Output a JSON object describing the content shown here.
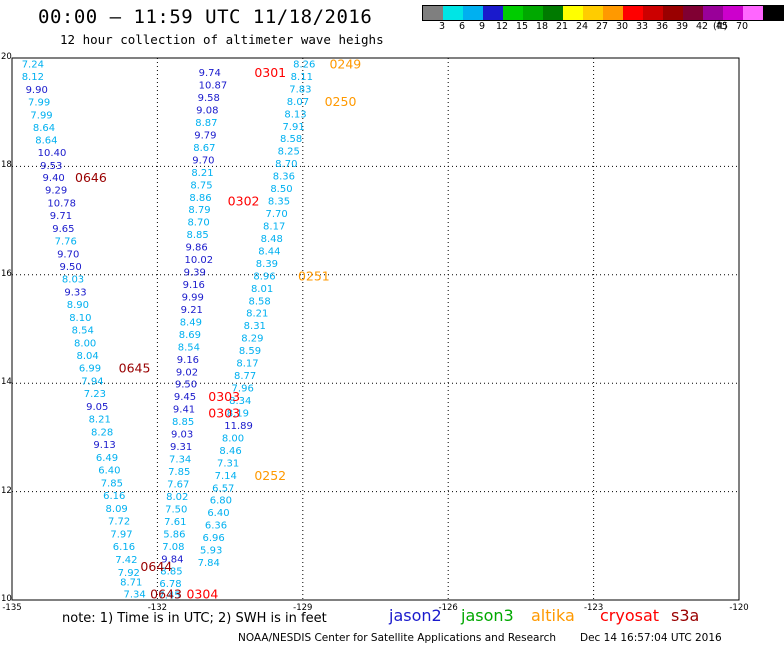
{
  "header": {
    "title": "00:00 – 11:59 UTC 11/18/2016",
    "subtitle": "12 hour collection of altimeter wave heighs"
  },
  "colorbar": {
    "colors": [
      "#7f7f7f",
      "#00e5e5",
      "#00b0f0",
      "#1a1acc",
      "#00cc00",
      "#00a800",
      "#007a00",
      "#ffff00",
      "#ffcc00",
      "#ff9900",
      "#ff0000",
      "#cc0000",
      "#990000",
      "#800033",
      "#990099",
      "#cc00cc",
      "#ff66ff",
      "#000000"
    ],
    "ticks": [
      "3",
      "6",
      "9",
      "12",
      "15",
      "18",
      "21",
      "24",
      "27",
      "30",
      "33",
      "36",
      "39",
      "42",
      "45",
      "70"
    ],
    "unit": "(ft)"
  },
  "axes": {
    "x_ticks": [
      "-135",
      "-132",
      "-129",
      "-126",
      "-123",
      "-120"
    ],
    "y_ticks": [
      "20",
      "18",
      "16",
      "14",
      "12",
      "10"
    ]
  },
  "chart_data": {
    "type": "scatter",
    "xlim": [
      -135,
      -120
    ],
    "ylim": [
      10,
      20
    ],
    "grid": true,
    "points": [
      {
        "lon": -134.8,
        "lat": 19.9,
        "v": "7.24",
        "c": "#00b0f0"
      },
      {
        "lon": -134.8,
        "lat": 19.67,
        "v": "8.12",
        "c": "#00b0f0"
      },
      {
        "lon": -134.72,
        "lat": 19.43,
        "v": "9.90",
        "c": "#1a1acc"
      },
      {
        "lon": -134.67,
        "lat": 19.2,
        "v": "7.99",
        "c": "#00b0f0"
      },
      {
        "lon": -134.62,
        "lat": 18.96,
        "v": "7.99",
        "c": "#00b0f0"
      },
      {
        "lon": -134.57,
        "lat": 18.73,
        "v": "8.64",
        "c": "#00b0f0"
      },
      {
        "lon": -134.52,
        "lat": 18.5,
        "v": "8.64",
        "c": "#00b0f0"
      },
      {
        "lon": -134.47,
        "lat": 18.27,
        "v": "10.40",
        "c": "#1a1acc"
      },
      {
        "lon": -134.42,
        "lat": 18.03,
        "v": "9.53",
        "c": "#1a1acc"
      },
      {
        "lon": -134.37,
        "lat": 17.8,
        "v": "9.40",
        "c": "#1a1acc"
      },
      {
        "lon": -134.32,
        "lat": 17.57,
        "v": "9.29",
        "c": "#1a1acc"
      },
      {
        "lon": -134.27,
        "lat": 17.33,
        "v": "10.78",
        "c": "#1a1acc"
      },
      {
        "lon": -134.22,
        "lat": 17.1,
        "v": "9.71",
        "c": "#1a1acc"
      },
      {
        "lon": -134.17,
        "lat": 16.86,
        "v": "9.65",
        "c": "#1a1acc"
      },
      {
        "lon": -134.12,
        "lat": 16.63,
        "v": "7.76",
        "c": "#00b0f0"
      },
      {
        "lon": -134.07,
        "lat": 16.39,
        "v": "9.70",
        "c": "#1a1acc"
      },
      {
        "lon": -134.02,
        "lat": 16.16,
        "v": "9.50",
        "c": "#1a1acc"
      },
      {
        "lon": -133.97,
        "lat": 15.93,
        "v": "8.03",
        "c": "#00b0f0"
      },
      {
        "lon": -133.92,
        "lat": 15.69,
        "v": "9.33",
        "c": "#1a1acc"
      },
      {
        "lon": -133.87,
        "lat": 15.46,
        "v": "8.90",
        "c": "#00b0f0"
      },
      {
        "lon": -133.82,
        "lat": 15.22,
        "v": "8.10",
        "c": "#00b0f0"
      },
      {
        "lon": -133.77,
        "lat": 14.99,
        "v": "8.54",
        "c": "#00b0f0"
      },
      {
        "lon": -133.72,
        "lat": 14.75,
        "v": "8.00",
        "c": "#00b0f0"
      },
      {
        "lon": -133.67,
        "lat": 14.52,
        "v": "8.04",
        "c": "#00b0f0"
      },
      {
        "lon": -133.62,
        "lat": 14.29,
        "v": "6.99",
        "c": "#00b0f0"
      },
      {
        "lon": -133.57,
        "lat": 14.05,
        "v": "7.94",
        "c": "#00b0f0"
      },
      {
        "lon": -133.52,
        "lat": 13.82,
        "v": "7.23",
        "c": "#00b0f0"
      },
      {
        "lon": -133.47,
        "lat": 13.58,
        "v": "9.05",
        "c": "#1a1acc"
      },
      {
        "lon": -133.42,
        "lat": 13.35,
        "v": "8.21",
        "c": "#00b0f0"
      },
      {
        "lon": -133.37,
        "lat": 13.11,
        "v": "8.28",
        "c": "#00b0f0"
      },
      {
        "lon": -133.32,
        "lat": 12.88,
        "v": "9.13",
        "c": "#1a1acc"
      },
      {
        "lon": -133.27,
        "lat": 12.64,
        "v": "6.49",
        "c": "#00b0f0"
      },
      {
        "lon": -133.22,
        "lat": 12.41,
        "v": "6.40",
        "c": "#00b0f0"
      },
      {
        "lon": -133.17,
        "lat": 12.17,
        "v": "7.85",
        "c": "#00b0f0"
      },
      {
        "lon": -133.12,
        "lat": 11.94,
        "v": "6.16",
        "c": "#00b0f0"
      },
      {
        "lon": -133.07,
        "lat": 11.7,
        "v": "8.09",
        "c": "#00b0f0"
      },
      {
        "lon": -133.02,
        "lat": 11.47,
        "v": "7.72",
        "c": "#00b0f0"
      },
      {
        "lon": -132.97,
        "lat": 11.23,
        "v": "7.97",
        "c": "#00b0f0"
      },
      {
        "lon": -132.92,
        "lat": 11.0,
        "v": "6.16",
        "c": "#00b0f0"
      },
      {
        "lon": -132.87,
        "lat": 10.76,
        "v": "7.42",
        "c": "#00b0f0"
      },
      {
        "lon": -132.82,
        "lat": 10.52,
        "v": "7.92",
        "c": "#00b0f0"
      },
      {
        "lon": -132.77,
        "lat": 10.34,
        "v": "8.71",
        "c": "#00b0f0"
      },
      {
        "lon": -132.7,
        "lat": 10.12,
        "v": "7.34",
        "c": "#00b0f0"
      },
      {
        "lon": -131.15,
        "lat": 19.74,
        "v": "9.74",
        "c": "#1a1acc"
      },
      {
        "lon": -131.15,
        "lat": 19.51,
        "v": "10.87",
        "c": "#1a1acc"
      },
      {
        "lon": -131.17,
        "lat": 19.28,
        "v": "9.58",
        "c": "#1a1acc"
      },
      {
        "lon": -131.2,
        "lat": 19.05,
        "v": "9.08",
        "c": "#1a1acc"
      },
      {
        "lon": -131.22,
        "lat": 18.82,
        "v": "8.87",
        "c": "#00b0f0"
      },
      {
        "lon": -131.24,
        "lat": 18.59,
        "v": "9.79",
        "c": "#1a1acc"
      },
      {
        "lon": -131.26,
        "lat": 18.36,
        "v": "8.67",
        "c": "#00b0f0"
      },
      {
        "lon": -131.28,
        "lat": 18.13,
        "v": "9.70",
        "c": "#1a1acc"
      },
      {
        "lon": -131.3,
        "lat": 17.9,
        "v": "8.21",
        "c": "#00b0f0"
      },
      {
        "lon": -131.32,
        "lat": 17.67,
        "v": "8.75",
        "c": "#00b0f0"
      },
      {
        "lon": -131.34,
        "lat": 17.44,
        "v": "8.86",
        "c": "#00b0f0"
      },
      {
        "lon": -131.36,
        "lat": 17.21,
        "v": "8.79",
        "c": "#00b0f0"
      },
      {
        "lon": -131.38,
        "lat": 16.98,
        "v": "8.70",
        "c": "#00b0f0"
      },
      {
        "lon": -131.4,
        "lat": 16.75,
        "v": "8.85",
        "c": "#00b0f0"
      },
      {
        "lon": -131.42,
        "lat": 16.52,
        "v": "9.86",
        "c": "#1a1acc"
      },
      {
        "lon": -131.44,
        "lat": 16.29,
        "v": "10.02",
        "c": "#1a1acc"
      },
      {
        "lon": -131.46,
        "lat": 16.06,
        "v": "9.39",
        "c": "#1a1acc"
      },
      {
        "lon": -131.48,
        "lat": 15.83,
        "v": "9.16",
        "c": "#1a1acc"
      },
      {
        "lon": -131.5,
        "lat": 15.6,
        "v": "9.99",
        "c": "#1a1acc"
      },
      {
        "lon": -131.52,
        "lat": 15.37,
        "v": "9.21",
        "c": "#1a1acc"
      },
      {
        "lon": -131.54,
        "lat": 15.14,
        "v": "8.49",
        "c": "#00b0f0"
      },
      {
        "lon": -131.56,
        "lat": 14.91,
        "v": "8.69",
        "c": "#00b0f0"
      },
      {
        "lon": -131.58,
        "lat": 14.68,
        "v": "8.54",
        "c": "#00b0f0"
      },
      {
        "lon": -131.6,
        "lat": 14.45,
        "v": "9.16",
        "c": "#1a1acc"
      },
      {
        "lon": -131.62,
        "lat": 14.22,
        "v": "9.02",
        "c": "#1a1acc"
      },
      {
        "lon": -131.64,
        "lat": 13.99,
        "v": "9.50",
        "c": "#1a1acc"
      },
      {
        "lon": -131.66,
        "lat": 13.76,
        "v": "9.45",
        "c": "#1a1acc"
      },
      {
        "lon": -131.68,
        "lat": 13.53,
        "v": "9.41",
        "c": "#1a1acc"
      },
      {
        "lon": -131.7,
        "lat": 13.3,
        "v": "8.85",
        "c": "#00b0f0"
      },
      {
        "lon": -131.72,
        "lat": 13.07,
        "v": "9.03",
        "c": "#1a1acc"
      },
      {
        "lon": -131.74,
        "lat": 12.84,
        "v": "9.31",
        "c": "#1a1acc"
      },
      {
        "lon": -131.76,
        "lat": 12.61,
        "v": "7.34",
        "c": "#00b0f0"
      },
      {
        "lon": -131.78,
        "lat": 12.38,
        "v": "7.85",
        "c": "#00b0f0"
      },
      {
        "lon": -131.8,
        "lat": 12.15,
        "v": "7.67",
        "c": "#00b0f0"
      },
      {
        "lon": -131.82,
        "lat": 11.92,
        "v": "8.02",
        "c": "#00b0f0"
      },
      {
        "lon": -131.84,
        "lat": 11.69,
        "v": "7.50",
        "c": "#00b0f0"
      },
      {
        "lon": -131.86,
        "lat": 11.46,
        "v": "7.61",
        "c": "#00b0f0"
      },
      {
        "lon": -131.88,
        "lat": 11.23,
        "v": "5.86",
        "c": "#00b0f0"
      },
      {
        "lon": -131.9,
        "lat": 11.0,
        "v": "7.08",
        "c": "#00b0f0"
      },
      {
        "lon": -131.92,
        "lat": 10.77,
        "v": "9.84",
        "c": "#1a1acc"
      },
      {
        "lon": -131.94,
        "lat": 10.54,
        "v": "8.85",
        "c": "#00b0f0"
      },
      {
        "lon": -131.96,
        "lat": 10.31,
        "v": "6.78",
        "c": "#00b0f0"
      },
      {
        "lon": -131.98,
        "lat": 10.1,
        "v": "7.45",
        "c": "#00b0f0"
      },
      {
        "lon": -129.2,
        "lat": 19.9,
        "v": "8.26",
        "c": "#00b0f0"
      },
      {
        "lon": -129.25,
        "lat": 19.67,
        "v": "8.11",
        "c": "#00b0f0"
      },
      {
        "lon": -129.28,
        "lat": 19.44,
        "v": "7.83",
        "c": "#00b0f0"
      },
      {
        "lon": -129.33,
        "lat": 19.21,
        "v": "8.07",
        "c": "#00b0f0"
      },
      {
        "lon": -129.38,
        "lat": 18.98,
        "v": "8.13",
        "c": "#00b0f0"
      },
      {
        "lon": -129.42,
        "lat": 18.75,
        "v": "7.91",
        "c": "#00b0f0"
      },
      {
        "lon": -129.47,
        "lat": 18.52,
        "v": "8.58",
        "c": "#00b0f0"
      },
      {
        "lon": -129.52,
        "lat": 18.29,
        "v": "8.25",
        "c": "#00b0f0"
      },
      {
        "lon": -129.57,
        "lat": 18.06,
        "v": "8.70",
        "c": "#00b0f0"
      },
      {
        "lon": -129.62,
        "lat": 17.83,
        "v": "8.36",
        "c": "#00b0f0"
      },
      {
        "lon": -129.67,
        "lat": 17.6,
        "v": "8.50",
        "c": "#00b0f0"
      },
      {
        "lon": -129.72,
        "lat": 17.37,
        "v": "8.35",
        "c": "#00b0f0"
      },
      {
        "lon": -129.77,
        "lat": 17.14,
        "v": "7.70",
        "c": "#00b0f0"
      },
      {
        "lon": -129.82,
        "lat": 16.91,
        "v": "8.17",
        "c": "#00b0f0"
      },
      {
        "lon": -129.87,
        "lat": 16.68,
        "v": "8.48",
        "c": "#00b0f0"
      },
      {
        "lon": -129.92,
        "lat": 16.45,
        "v": "8.44",
        "c": "#00b0f0"
      },
      {
        "lon": -129.97,
        "lat": 16.22,
        "v": "8.39",
        "c": "#00b0f0"
      },
      {
        "lon": -130.02,
        "lat": 15.99,
        "v": "8.96",
        "c": "#00b0f0"
      },
      {
        "lon": -130.07,
        "lat": 15.76,
        "v": "8.01",
        "c": "#00b0f0"
      },
      {
        "lon": -130.12,
        "lat": 15.53,
        "v": "8.58",
        "c": "#00b0f0"
      },
      {
        "lon": -130.17,
        "lat": 15.3,
        "v": "8.21",
        "c": "#00b0f0"
      },
      {
        "lon": -130.22,
        "lat": 15.07,
        "v": "8.31",
        "c": "#00b0f0"
      },
      {
        "lon": -130.27,
        "lat": 14.84,
        "v": "8.29",
        "c": "#00b0f0"
      },
      {
        "lon": -130.32,
        "lat": 14.61,
        "v": "8.59",
        "c": "#00b0f0"
      },
      {
        "lon": -130.37,
        "lat": 14.38,
        "v": "8.17",
        "c": "#00b0f0"
      },
      {
        "lon": -130.42,
        "lat": 14.15,
        "v": "8.77",
        "c": "#00b0f0"
      },
      {
        "lon": -130.47,
        "lat": 13.92,
        "v": "7.96",
        "c": "#00b0f0"
      },
      {
        "lon": -130.52,
        "lat": 13.69,
        "v": "8.34",
        "c": "#00b0f0"
      },
      {
        "lon": -130.57,
        "lat": 13.46,
        "v": "8.19",
        "c": "#00b0f0"
      },
      {
        "lon": -130.62,
        "lat": 13.23,
        "v": "11.89",
        "c": "#1a1acc"
      },
      {
        "lon": -130.67,
        "lat": 13.0,
        "v": "8.00",
        "c": "#00b0f0"
      },
      {
        "lon": -130.72,
        "lat": 12.77,
        "v": "8.46",
        "c": "#00b0f0"
      },
      {
        "lon": -130.77,
        "lat": 12.54,
        "v": "7.31",
        "c": "#00b0f0"
      },
      {
        "lon": -130.82,
        "lat": 12.31,
        "v": "7.14",
        "c": "#00b0f0"
      },
      {
        "lon": -130.87,
        "lat": 12.08,
        "v": "6.57",
        "c": "#00b0f0"
      },
      {
        "lon": -130.92,
        "lat": 11.85,
        "v": "6.80",
        "c": "#00b0f0"
      },
      {
        "lon": -130.97,
        "lat": 11.62,
        "v": "6.40",
        "c": "#00b0f0"
      },
      {
        "lon": -131.02,
        "lat": 11.39,
        "v": "6.36",
        "c": "#00b0f0"
      },
      {
        "lon": -131.07,
        "lat": 11.16,
        "v": "6.96",
        "c": "#00b0f0"
      },
      {
        "lon": -131.12,
        "lat": 10.93,
        "v": "5.93",
        "c": "#00b0f0"
      },
      {
        "lon": -131.17,
        "lat": 10.7,
        "v": "7.84",
        "c": "#00b0f0"
      }
    ],
    "labels": [
      {
        "lon": -130.0,
        "lat": 19.74,
        "v": "0301",
        "c": "#ff0000"
      },
      {
        "lon": -128.45,
        "lat": 19.9,
        "v": "0249",
        "c": "#ff9900"
      },
      {
        "lon": -128.55,
        "lat": 19.21,
        "v": "0250",
        "c": "#ff9900"
      },
      {
        "lon": -133.7,
        "lat": 17.8,
        "v": "0646",
        "c": "#990000"
      },
      {
        "lon": -130.55,
        "lat": 17.37,
        "v": "0302",
        "c": "#ff0000"
      },
      {
        "lon": -129.1,
        "lat": 15.99,
        "v": "0251",
        "c": "#ff9900"
      },
      {
        "lon": -132.8,
        "lat": 14.29,
        "v": "0645",
        "c": "#990000"
      },
      {
        "lon": -130.95,
        "lat": 13.76,
        "v": "0303",
        "c": "#ff0000"
      },
      {
        "lon": -130.95,
        "lat": 13.46,
        "v": "0303",
        "c": "#ff0000"
      },
      {
        "lon": -130.0,
        "lat": 12.31,
        "v": "0252",
        "c": "#ff9900"
      },
      {
        "lon": -132.35,
        "lat": 10.63,
        "v": "0644",
        "c": "#990000"
      },
      {
        "lon": -132.15,
        "lat": 10.12,
        "v": "0643",
        "c": "#990000"
      },
      {
        "lon": -131.4,
        "lat": 10.12,
        "v": "0304",
        "c": "#ff0000"
      }
    ]
  },
  "footer": {
    "note": "note: 1) Time is in UTC; 2) SWH is in feet",
    "satellites": [
      {
        "name": "jason2",
        "color": "#1a1acc"
      },
      {
        "name": "jason3",
        "color": "#00a800"
      },
      {
        "name": "altika",
        "color": "#ff9900"
      },
      {
        "name": "cryosat",
        "color": "#ff0000"
      },
      {
        "name": "s3a",
        "color": "#990000"
      }
    ],
    "credit": "NOAA/NESDIS Center for Satellite Applications and Research",
    "timestamp": "Dec 14 16:57:04 UTC 2016"
  }
}
